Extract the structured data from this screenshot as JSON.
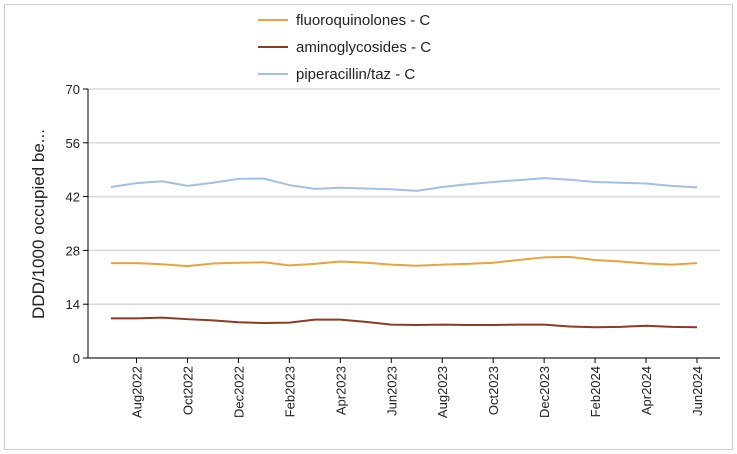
{
  "chart_data": {
    "type": "line",
    "y_label": "DDD/1000  occupied  be...",
    "categories": [
      null,
      "Aug2022",
      null,
      "Oct2022",
      null,
      "Dec2022",
      null,
      "Feb2023",
      null,
      "Apr2023",
      null,
      "Jun2023",
      null,
      "Aug2023",
      null,
      "Oct2023",
      null,
      "Dec2023",
      null,
      "Feb2024",
      null,
      "Apr2024",
      null,
      "Jun2024"
    ],
    "series": [
      {
        "name": "fluoroquinolones - C",
        "color": "#e8a33d",
        "values": [
          24.7,
          24.7,
          24.4,
          23.9,
          24.6,
          24.8,
          24.9,
          24.1,
          24.5,
          25.1,
          24.8,
          24.3,
          24.0,
          24.3,
          24.5,
          24.8,
          25.5,
          26.2,
          26.3,
          25.5,
          25.1,
          24.6,
          24.3,
          24.7
        ]
      },
      {
        "name": "aminoglycosides - C",
        "color": "#8b3a24",
        "values": [
          10.3,
          10.3,
          10.5,
          10.1,
          9.8,
          9.3,
          9.1,
          9.2,
          10.0,
          10.0,
          9.4,
          8.7,
          8.6,
          8.7,
          8.6,
          8.6,
          8.7,
          8.7,
          8.2,
          8.0,
          8.1,
          8.4,
          8.1,
          8.0
        ]
      },
      {
        "name": "piperacillin/taz - C",
        "color": "#a3bfe3",
        "values": [
          44.5,
          45.5,
          46.0,
          44.8,
          45.6,
          46.6,
          46.7,
          45.0,
          44.0,
          44.3,
          44.1,
          43.9,
          43.5,
          44.5,
          45.2,
          45.8,
          46.3,
          46.8,
          46.4,
          45.8,
          45.6,
          45.4,
          44.8,
          44.4
        ]
      }
    ],
    "ylim": [
      0,
      70
    ],
    "yticks": [
      0,
      14,
      28,
      42,
      56,
      70
    ],
    "grid": true
  }
}
